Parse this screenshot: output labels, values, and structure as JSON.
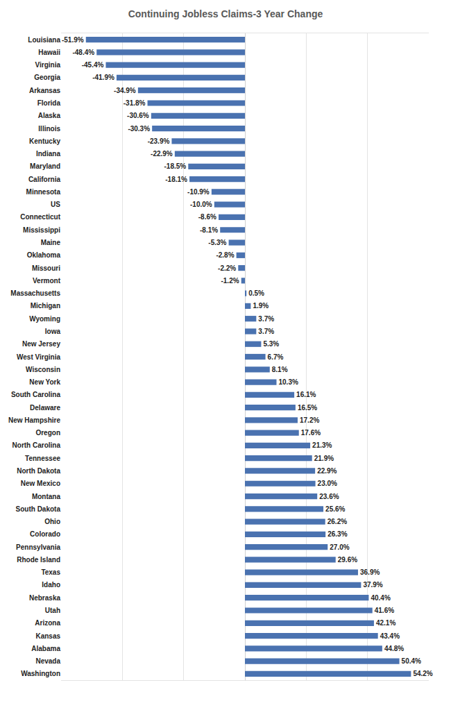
{
  "chart_data": {
    "type": "bar",
    "title": "Continuing Jobless Claims-3 Year Change",
    "orientation": "horizontal",
    "categories": [
      "Louisiana",
      "Hawaii",
      "Virginia",
      "Georgia",
      "Arkansas",
      "Florida",
      "Alaska",
      "Illinois",
      "Kentucky",
      "Indiana",
      "Maryland",
      "California",
      "Minnesota",
      "US",
      "Connecticut",
      "Mississippi",
      "Maine",
      "Oklahoma",
      "Missouri",
      "Vermont",
      "Massachusetts",
      "Michigan",
      "Wyoming",
      "Iowa",
      "New Jersey",
      "West Virginia",
      "Wisconsin",
      "New York",
      "South Carolina",
      "Delaware",
      "New Hampshire",
      "Oregon",
      "North Carolina",
      "Tennessee",
      "North Dakota",
      "New Mexico",
      "Montana",
      "South Dakota",
      "Ohio",
      "Colorado",
      "Pennsylvania",
      "Rhode Island",
      "Texas",
      "Idaho",
      "Nebraska",
      "Utah",
      "Arizona",
      "Kansas",
      "Alabama",
      "Nevada",
      "Washington"
    ],
    "values": [
      -51.9,
      -48.4,
      -45.4,
      -41.9,
      -34.9,
      -31.8,
      -30.6,
      -30.3,
      -23.9,
      -22.9,
      -18.5,
      -18.1,
      -10.9,
      -10.0,
      -8.6,
      -8.1,
      -5.3,
      -2.8,
      -2.2,
      -1.2,
      0.5,
      1.9,
      3.7,
      3.7,
      5.3,
      6.7,
      8.1,
      10.3,
      16.1,
      16.5,
      17.2,
      17.6,
      21.3,
      21.9,
      22.9,
      23.0,
      23.6,
      25.6,
      26.2,
      26.3,
      27.0,
      29.6,
      36.9,
      37.9,
      40.4,
      41.6,
      42.1,
      43.4,
      44.8,
      50.4,
      54.2
    ],
    "value_labels": [
      "-51.9%",
      "-48.4%",
      "-45.4%",
      "-41.9%",
      "-34.9%",
      "-31.8%",
      "-30.6%",
      "-30.3%",
      "-23.9%",
      "-22.9%",
      "-18.5%",
      "-18.1%",
      "-10.9%",
      "-10.0%",
      "-8.6%",
      "-8.1%",
      "-5.3%",
      "-2.8%",
      "-2.2%",
      "-1.2%",
      "0.5%",
      "1.9%",
      "3.7%",
      "3.7%",
      "5.3%",
      "6.7%",
      "8.1%",
      "10.3%",
      "16.1%",
      "16.5%",
      "17.2%",
      "17.6%",
      "21.3%",
      "21.9%",
      "22.9%",
      "23.0%",
      "23.6%",
      "25.6%",
      "26.2%",
      "26.3%",
      "27.0%",
      "29.6%",
      "36.9%",
      "37.9%",
      "40.4%",
      "41.6%",
      "42.1%",
      "43.4%",
      "44.8%",
      "50.4%",
      "54.2%"
    ],
    "color": "#4a72b0",
    "data_labels": true,
    "xlim": [
      -60,
      60
    ],
    "xticks": [
      -60,
      -40,
      -20,
      0,
      20,
      40,
      60
    ],
    "grid": true,
    "tick_labels": "y"
  }
}
